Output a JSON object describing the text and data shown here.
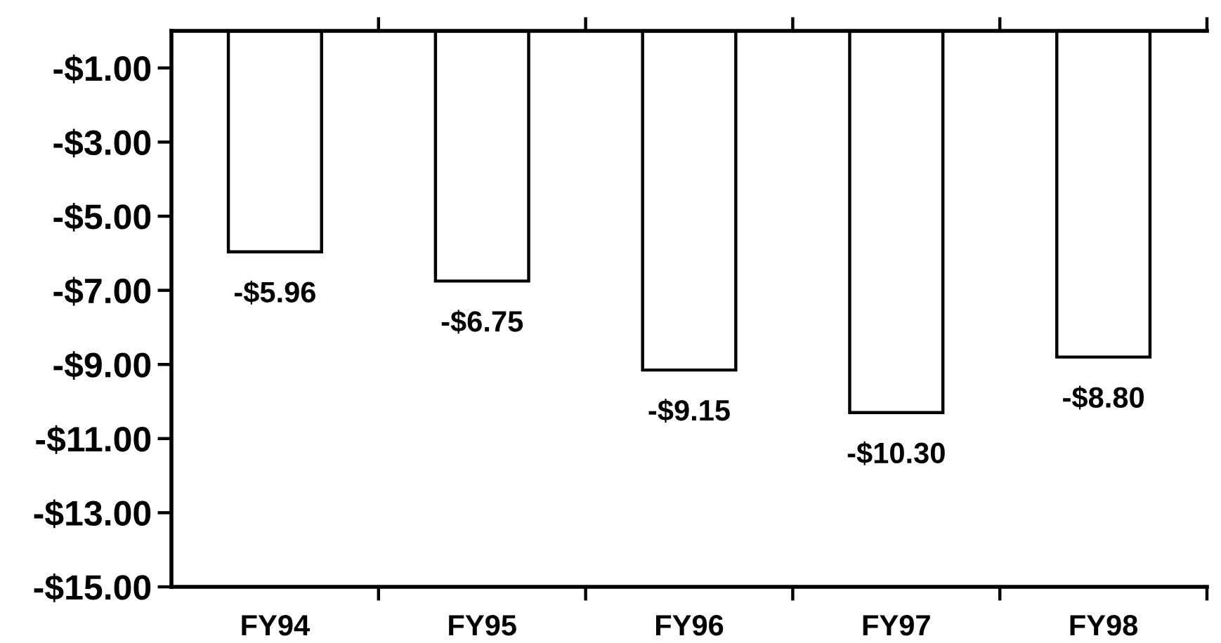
{
  "chart_data": {
    "type": "bar",
    "categories": [
      "FY94",
      "FY95",
      "FY96",
      "FY97",
      "FY98"
    ],
    "values": [
      -5.96,
      -6.75,
      -9.15,
      -10.3,
      -8.8
    ],
    "color": "#ffffff",
    "value_labels": [
      "-$5.96",
      "-$6.75",
      "-$9.15",
      "-$10.30",
      "-$8.80"
    ],
    "ylim": [
      -15,
      0
    ],
    "yticks": [
      {
        "value": -1,
        "label": "-$1.00"
      },
      {
        "value": -3,
        "label": "-$3.00"
      },
      {
        "value": -5,
        "label": "-$5.00"
      },
      {
        "value": -7,
        "label": "-$7.00"
      },
      {
        "value": -9,
        "label": "-$9.00"
      },
      {
        "value": -11,
        "label": "-$11.00"
      },
      {
        "value": -13,
        "label": "-$13.00"
      },
      {
        "value": -15,
        "label": "-$15.00"
      }
    ],
    "grid": false
  }
}
